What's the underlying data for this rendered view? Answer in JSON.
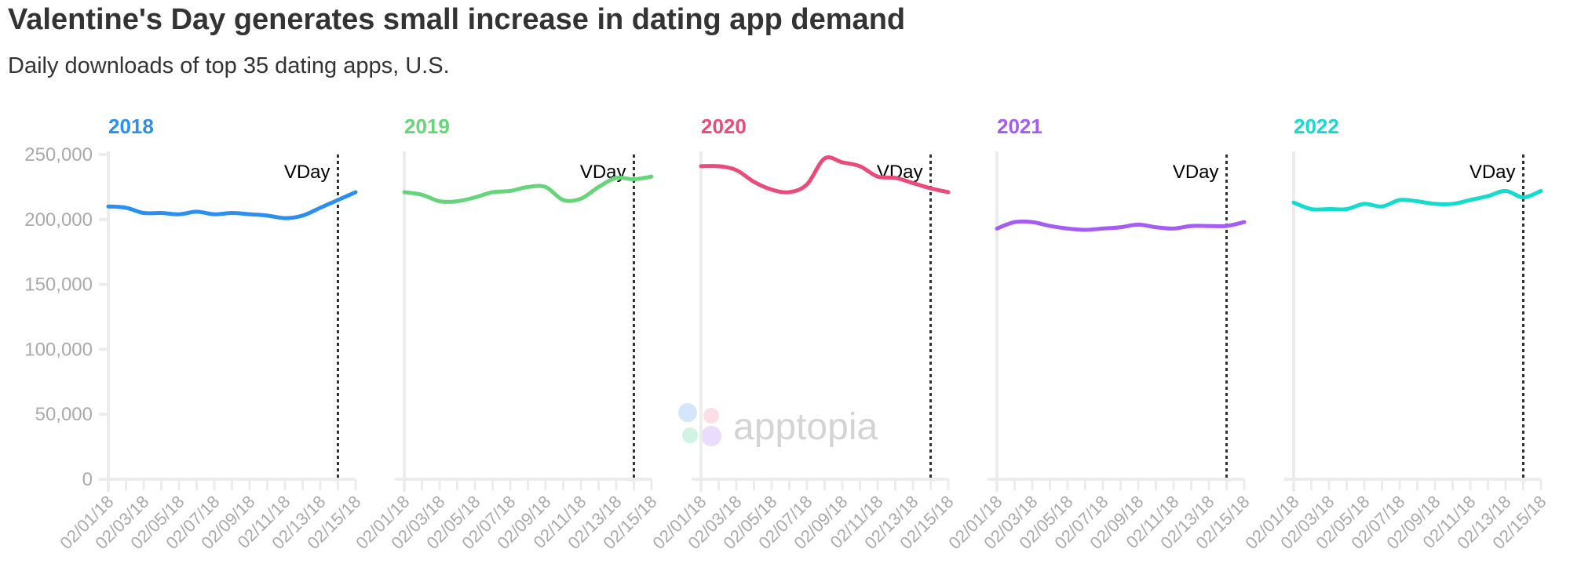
{
  "title": "Valentine's Day generates small increase in dating app demand",
  "subtitle": "Daily downloads of top 35 dating apps, U.S.",
  "watermark": "apptopia",
  "chart_data": {
    "type": "line",
    "layout": "small-multiples",
    "x": [
      "02/01/18",
      "02/02/18",
      "02/03/18",
      "02/04/18",
      "02/05/18",
      "02/06/18",
      "02/07/18",
      "02/08/18",
      "02/09/18",
      "02/10/18",
      "02/11/18",
      "02/12/18",
      "02/13/18",
      "02/14/18",
      "02/15/18"
    ],
    "x_tick_labels": [
      "02/01/18",
      "02/03/18",
      "02/05/18",
      "02/07/18",
      "02/09/18",
      "02/11/18",
      "02/13/18",
      "02/15/18"
    ],
    "y_tick_labels": [
      "0",
      "50,000",
      "100,000",
      "150,000",
      "200,000",
      "250,000"
    ],
    "ylim": [
      0,
      250000
    ],
    "grid": false,
    "annotation": {
      "label": "VDay",
      "x": "02/14/18",
      "style": "dotted vertical line"
    },
    "series": [
      {
        "name": "2018",
        "color": "#2b8ff0",
        "values": [
          210000,
          209000,
          205000,
          205000,
          204000,
          206000,
          204000,
          205000,
          204000,
          203000,
          201000,
          203000,
          209000,
          215000,
          221000
        ]
      },
      {
        "name": "2019",
        "color": "#66d478",
        "values": [
          221000,
          219000,
          214000,
          214000,
          217000,
          221000,
          222000,
          225000,
          225000,
          215000,
          216000,
          225000,
          232000,
          231000,
          233000
        ]
      },
      {
        "name": "2020",
        "color": "#ea4c7a",
        "values": [
          241000,
          241000,
          238000,
          229000,
          223000,
          221000,
          227000,
          247000,
          244000,
          241000,
          233000,
          232000,
          228000,
          224000,
          221000
        ]
      },
      {
        "name": "2021",
        "color": "#a45cf5",
        "values": [
          193000,
          198000,
          198000,
          195000,
          193000,
          192000,
          193000,
          194000,
          196000,
          194000,
          193000,
          195000,
          195000,
          195000,
          198000
        ]
      },
      {
        "name": "2022",
        "color": "#14dccd",
        "values": [
          213000,
          208000,
          208000,
          208000,
          212000,
          210000,
          215000,
          214000,
          212000,
          212000,
          215000,
          218000,
          222000,
          217000,
          222000
        ]
      }
    ]
  }
}
